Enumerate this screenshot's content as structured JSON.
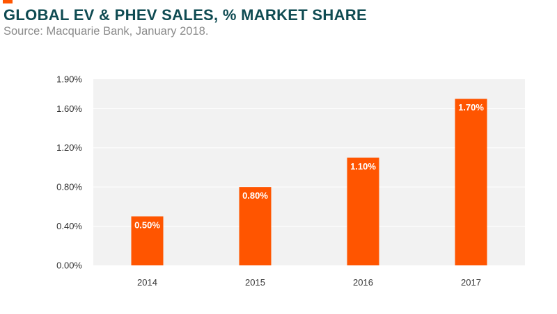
{
  "header": {
    "title": "GLOBAL EV & PHEV SALES, % MARKET SHARE",
    "subtitle": "Source: Macquarie Bank, January 2018."
  },
  "colors": {
    "accent": "#ff5500",
    "bar": "#ff5500",
    "plot_background": "#f2f2f2",
    "gridline": "#ffffff",
    "title": "#0f4b52",
    "subtitle": "#8a8a8a"
  },
  "chart_data": {
    "type": "bar",
    "title": "GLOBAL EV & PHEV SALES, % MARKET SHARE",
    "subtitle": "Source: Macquarie Bank, January 2018.",
    "xlabel": "",
    "ylabel": "",
    "categories": [
      "2014",
      "2015",
      "2016",
      "2017"
    ],
    "values": [
      0.5,
      0.8,
      1.1,
      1.7
    ],
    "data_labels": [
      "0.50%",
      "0.80%",
      "1.10%",
      "1.70%"
    ],
    "ylim": [
      0,
      1.9
    ],
    "yticks": [
      0,
      0.4,
      0.8,
      1.2,
      1.6,
      1.9
    ],
    "ytick_labels": [
      "0.00%",
      "0.40%",
      "0.80%",
      "1.20%",
      "1.60%",
      "1.90%"
    ],
    "grid": true,
    "legend": "none"
  }
}
